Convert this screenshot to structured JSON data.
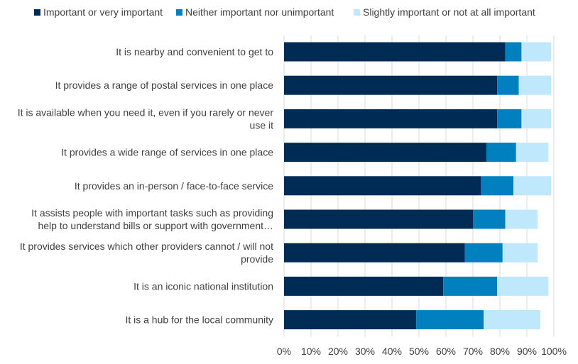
{
  "chart_data": {
    "type": "bar",
    "orientation": "horizontal",
    "stacked": true,
    "categories": [
      [
        "It is nearby and convenient to get to"
      ],
      [
        "It provides a range of postal services in one place"
      ],
      [
        "It is available when you need it, even if you rarely or never",
        "use it"
      ],
      [
        "It provides a wide range of services in one place"
      ],
      [
        "It provides an in-person / face-to-face service"
      ],
      [
        "It assists people with important tasks such as providing",
        "help to understand bills or support with government…"
      ],
      [
        "It provides services which other providers cannot / will not",
        "provide"
      ],
      [
        "It is an iconic national institution"
      ],
      [
        "It is a hub for the local community"
      ]
    ],
    "series": [
      {
        "name": "Important or very important",
        "color": "#002B55",
        "values": [
          82,
          79,
          79,
          75,
          73,
          70,
          67,
          59,
          49
        ]
      },
      {
        "name": "Neither important nor unimportant",
        "color": "#0080BF",
        "values": [
          6,
          8,
          9,
          11,
          12,
          12,
          14,
          20,
          25
        ]
      },
      {
        "name": "Slightly important or not at all important",
        "color": "#BFE8FD",
        "values": [
          11,
          12,
          11,
          12,
          14,
          12,
          13,
          19,
          21
        ]
      }
    ],
    "xlim": [
      0,
      100
    ],
    "xticks": [
      "0%",
      "10%",
      "20%",
      "30%",
      "40%",
      "50%",
      "60%",
      "70%",
      "80%",
      "90%",
      "100%"
    ],
    "grid": true,
    "legend_position": "top"
  }
}
